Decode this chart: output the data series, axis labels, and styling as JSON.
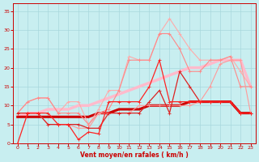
{
  "xlabel": "Vent moyen/en rafales ( km/h )",
  "background_color": "#c8eef0",
  "grid_color": "#a8d8dc",
  "x": [
    0,
    1,
    2,
    3,
    4,
    5,
    6,
    7,
    8,
    9,
    10,
    11,
    12,
    13,
    14,
    15,
    16,
    17,
    18,
    19,
    20,
    21,
    22,
    23
  ],
  "ylim": [
    0,
    37
  ],
  "xlim": [
    -0.5,
    23.5
  ],
  "series": [
    {
      "color": "#ffaaaa",
      "lw": 0.8,
      "values": [
        8,
        11,
        12,
        12,
        8,
        11,
        11,
        5,
        9,
        14,
        14,
        23,
        22,
        22,
        29,
        33,
        29,
        25,
        22,
        22,
        22,
        23,
        19,
        15
      ]
    },
    {
      "color": "#ff8888",
      "lw": 0.8,
      "values": [
        8,
        11,
        12,
        12,
        8,
        8,
        8,
        5,
        8,
        9,
        14,
        22,
        22,
        22,
        29,
        29,
        25,
        19,
        19,
        22,
        22,
        23,
        15,
        15
      ]
    },
    {
      "color": "#ffbbcc",
      "lw": 2.5,
      "values": [
        7,
        8,
        8,
        9,
        9,
        9,
        10,
        10,
        11,
        12,
        13,
        14,
        15,
        16,
        17,
        18,
        19,
        20,
        20,
        21,
        22,
        22,
        22,
        15
      ]
    },
    {
      "color": "#ff9999",
      "lw": 0.8,
      "values": [
        8,
        8,
        8,
        5,
        5,
        5,
        4,
        4,
        8,
        8,
        8,
        8,
        10,
        10,
        10,
        10,
        10,
        10,
        11,
        15,
        21,
        22,
        22,
        8
      ]
    },
    {
      "color": "#cc0000",
      "lw": 2.2,
      "values": [
        7,
        7,
        7,
        7,
        7,
        7,
        7,
        7,
        8,
        8,
        9,
        9,
        9,
        10,
        10,
        10,
        10,
        11,
        11,
        11,
        11,
        11,
        8,
        8
      ]
    },
    {
      "color": "#dd2222",
      "lw": 0.9,
      "values": [
        8,
        8,
        8,
        5,
        5,
        5,
        5,
        4,
        4,
        8,
        8,
        8,
        8,
        11,
        14,
        8,
        19,
        15,
        11,
        11,
        11,
        11,
        8,
        8
      ]
    },
    {
      "color": "#ff2222",
      "lw": 0.9,
      "values": [
        0,
        8,
        8,
        8,
        5,
        5,
        1,
        3,
        2.5,
        11,
        11,
        11,
        11,
        15,
        22,
        11,
        11,
        11,
        11,
        11,
        11,
        11,
        8,
        8
      ]
    }
  ],
  "yticks": [
    0,
    5,
    10,
    15,
    20,
    25,
    30,
    35
  ],
  "xticks": [
    0,
    1,
    2,
    3,
    4,
    5,
    6,
    7,
    8,
    9,
    10,
    11,
    12,
    13,
    14,
    15,
    16,
    17,
    18,
    19,
    20,
    21,
    22,
    23
  ],
  "tick_color": "#cc0000",
  "spine_color": "#cc0000",
  "xlabel_fontsize": 5.5,
  "tick_fontsize": 4.5
}
